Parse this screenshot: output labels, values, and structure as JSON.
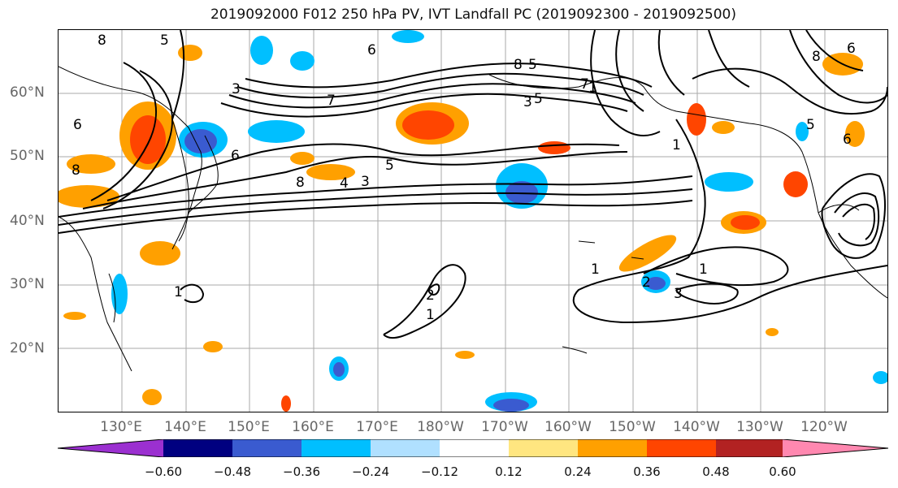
{
  "title": "2019092000 F012 250 hPa PV, IVT Landfall PC (2019092300 - 2019092500)",
  "lat_labels": [
    "60°N",
    "50°N",
    "40°N",
    "30°N",
    "20°N"
  ],
  "lon_labels": [
    "130°E",
    "140°E",
    "150°E",
    "160°E",
    "170°E",
    "180°W",
    "170°W",
    "160°W",
    "150°W",
    "140°W",
    "130°W",
    "120°W"
  ],
  "colorbar": {
    "ticks": [
      "−0.60",
      "−0.48",
      "−0.36",
      "−0.24",
      "−0.12",
      "0.12",
      "0.24",
      "0.36",
      "0.48",
      "0.60"
    ],
    "colors": [
      "#9b30d0",
      "#000080",
      "#3a5bd0",
      "#00bfff",
      "#b0e0ff",
      "#ffffff",
      "#ffe680",
      "#ffa000",
      "#ff4500",
      "#b22222",
      "#ff88b0"
    ]
  },
  "contour_labels": [
    "8",
    "5",
    "6",
    "6",
    "6",
    "8",
    "8",
    "5",
    "3",
    "7",
    "8",
    "5",
    "4",
    "3",
    "5",
    "1",
    "1",
    "1",
    "1",
    "2",
    "2",
    "3",
    "1",
    "1",
    "6",
    "5",
    "6",
    "8",
    "7",
    "3"
  ]
}
